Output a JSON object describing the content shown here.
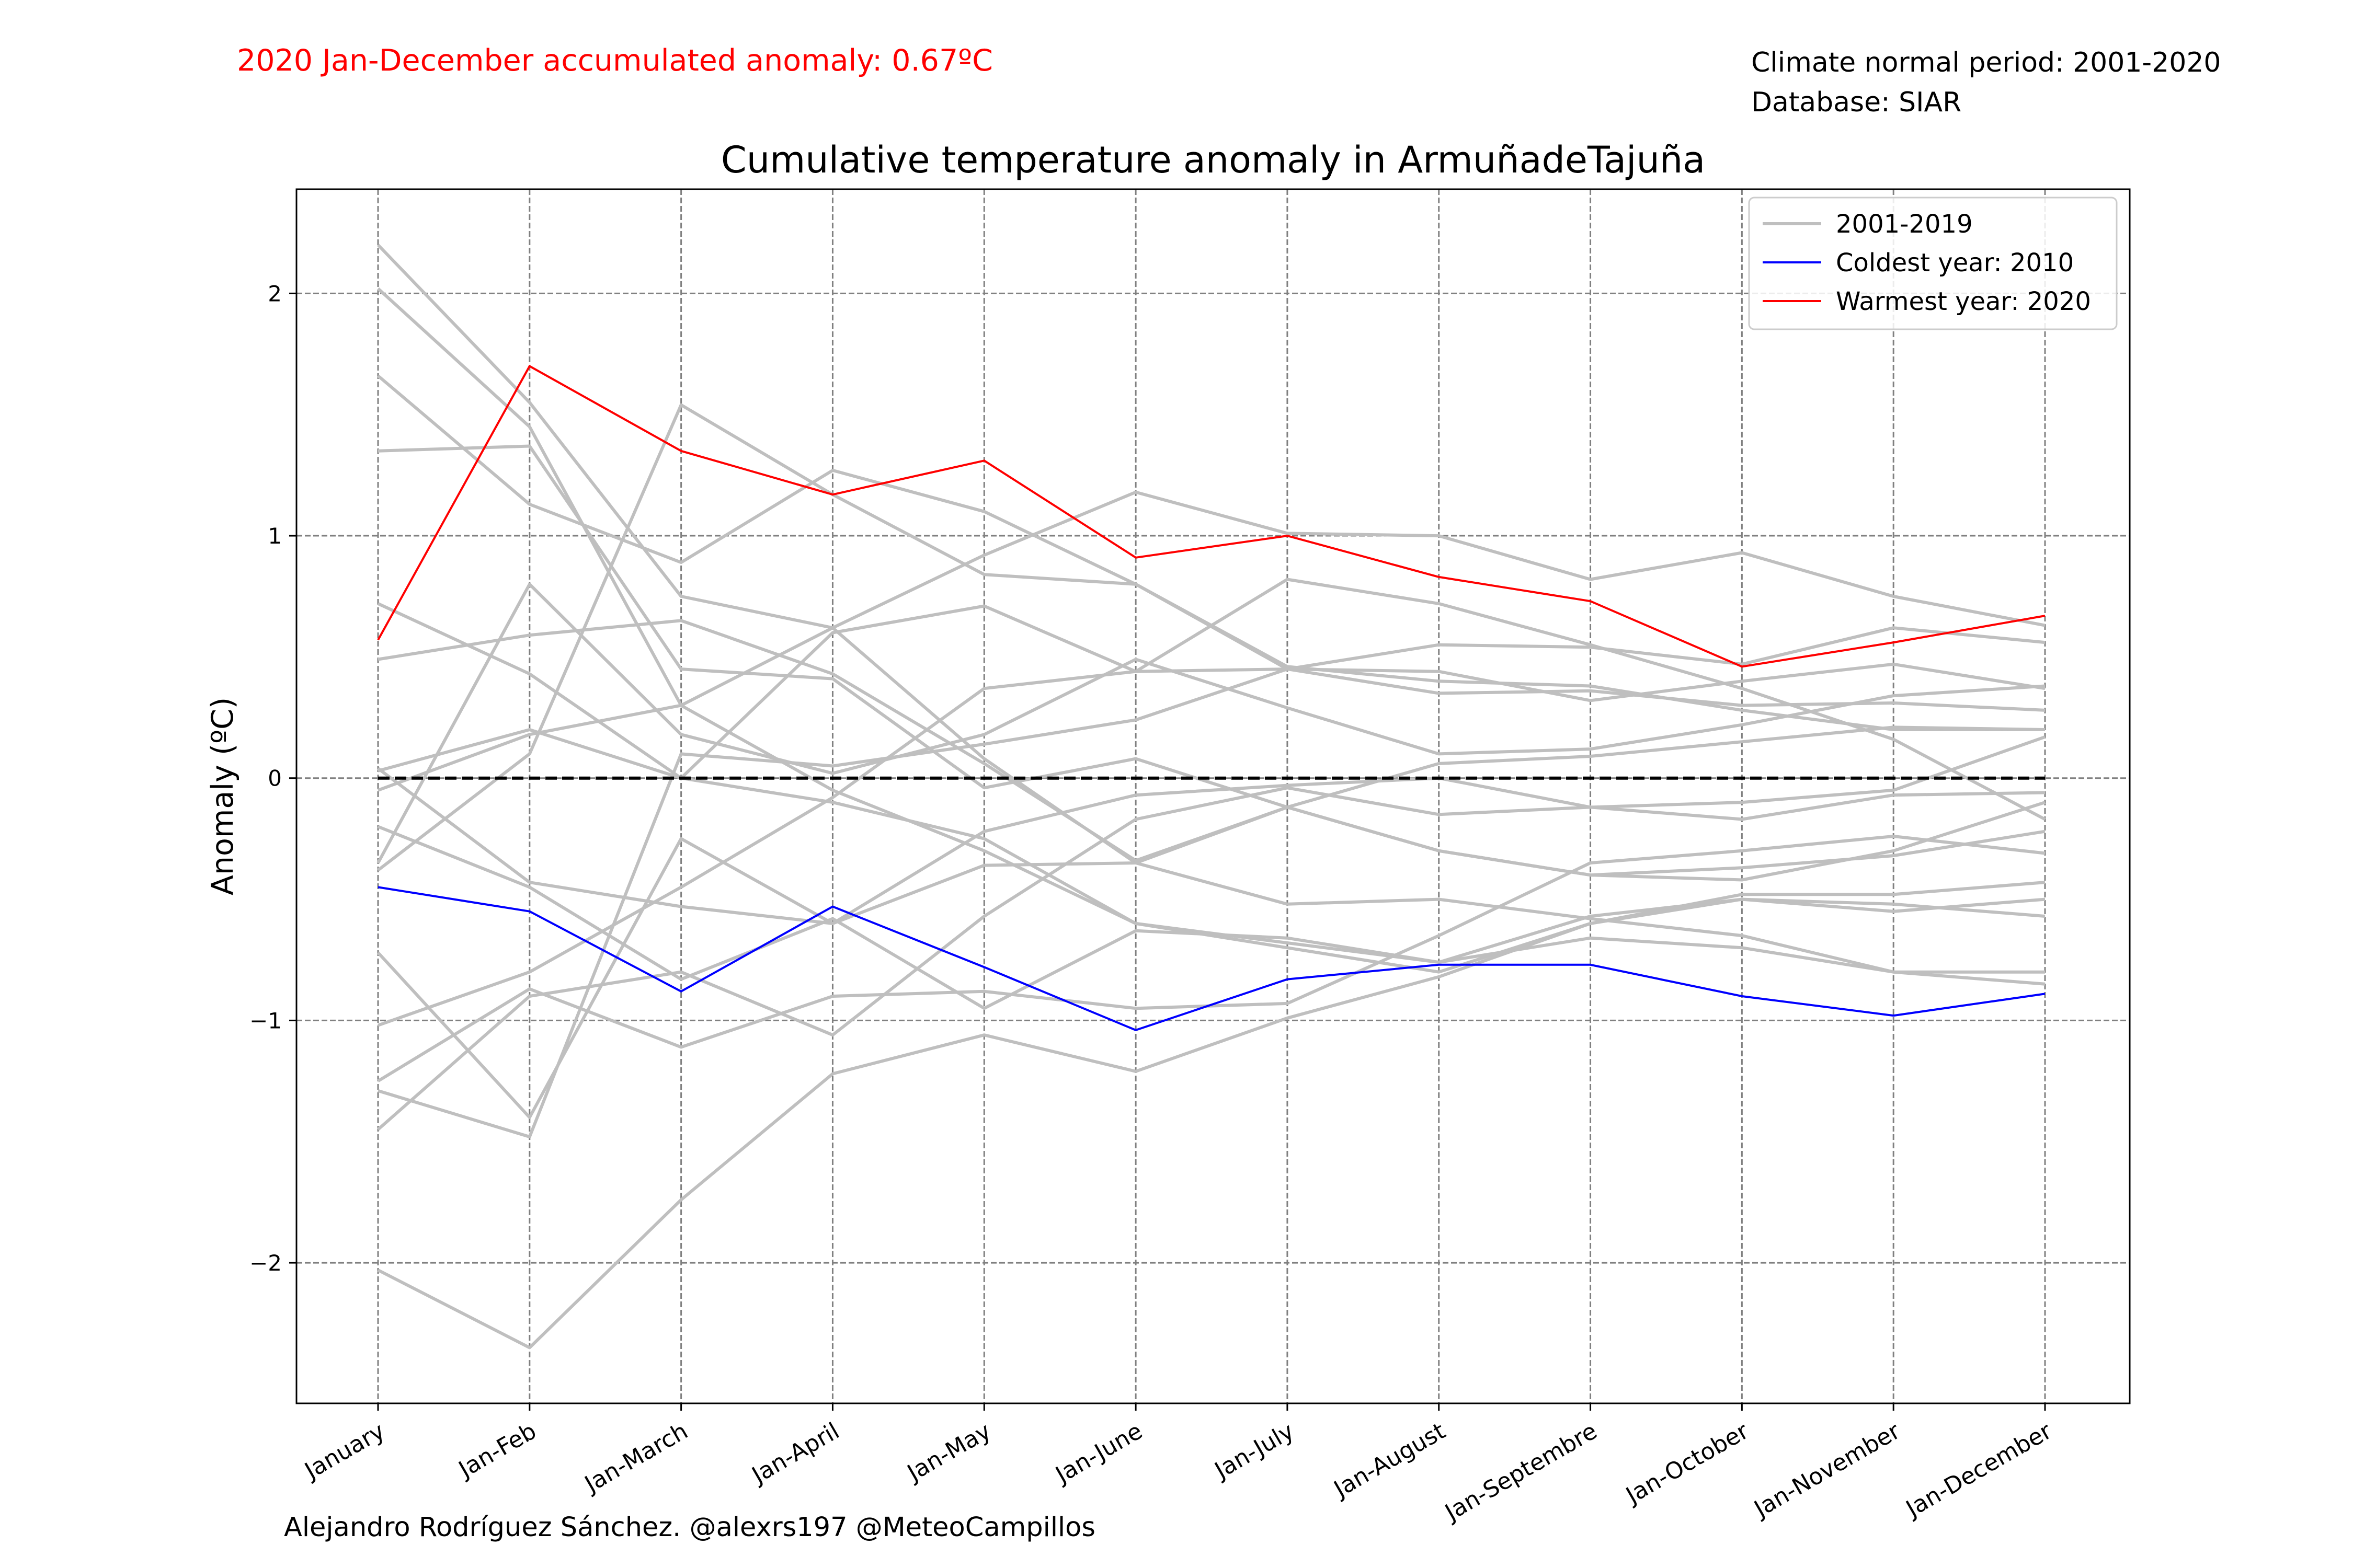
{
  "header": {
    "anomaly_note": "2020 Jan-December accumulated anomaly: 0.67ºC",
    "climate_normal": "Climate normal period: 2001-2020",
    "database": "Database: SIAR"
  },
  "footer": {
    "credit": "Alejandro Rodríguez Sánchez. @alexrs197 @MeteoCampillos"
  },
  "colors": {
    "warmest": "#ff0000",
    "coldest": "#0000ff",
    "background_years": "#bfbfbf",
    "zero_line": "#000000",
    "grid": "#808080",
    "anomaly_note": "#ff0000"
  },
  "chart_data": {
    "type": "line",
    "title": "Cumulative temperature anomaly in ArmuñadeTajuña",
    "xlabel": "",
    "ylabel": "Anomaly (ºC)",
    "ylim": [
      -2.58,
      2.43
    ],
    "yticks": [
      2,
      1,
      0,
      -1,
      -2
    ],
    "ytick_labels": [
      "2",
      "1",
      "0",
      "−1",
      "−2"
    ],
    "grid": true,
    "legend_position": "top-right",
    "categories": [
      "January",
      "Jan-Feb",
      "Jan-March",
      "Jan-April",
      "Jan-May",
      "Jan-June",
      "Jan-July",
      "Jan-August",
      "Jan-Septembre",
      "Jan-October",
      "Jan-November",
      "Jan-December"
    ],
    "reference_line": {
      "y": 0,
      "style": "dashed"
    },
    "legend": [
      "2001-2019",
      "Coldest year: 2010",
      "Warmest year: 2020"
    ],
    "series": [
      {
        "name": "Warmest year: 2020",
        "role": "warmest",
        "values": [
          0.57,
          1.7,
          1.35,
          1.17,
          1.31,
          0.91,
          1.0,
          0.83,
          0.73,
          0.46,
          0.56,
          0.67
        ]
      },
      {
        "name": "Coldest year: 2010",
        "role": "coldest",
        "values": [
          -0.45,
          -0.55,
          -0.88,
          -0.53,
          -0.78,
          -1.04,
          -0.83,
          -0.77,
          -0.77,
          -0.9,
          -0.98,
          -0.89
        ]
      },
      {
        "role": "background",
        "values": [
          2.2,
          1.55,
          0.75,
          0.62,
          0.08,
          -0.35,
          -0.52,
          -0.5,
          -0.58,
          -0.65,
          -0.8,
          -0.85
        ]
      },
      {
        "role": "background",
        "values": [
          2.02,
          1.45,
          0.3,
          -0.05,
          -0.3,
          -0.6,
          -0.68,
          -0.76,
          -0.57,
          -0.5,
          -0.52,
          -0.57
        ]
      },
      {
        "role": "background",
        "values": [
          1.66,
          1.13,
          0.89,
          1.27,
          1.1,
          0.8,
          0.46,
          0.4,
          0.38,
          0.28,
          0.2,
          0.2
        ]
      },
      {
        "role": "background",
        "values": [
          1.35,
          1.37,
          0.45,
          0.41,
          -0.04,
          0.08,
          -0.12,
          -0.3,
          -0.4,
          -0.42,
          -0.3,
          -0.1
        ]
      },
      {
        "role": "background",
        "values": [
          0.72,
          0.43,
          0.0,
          -0.1,
          -0.25,
          -0.6,
          -0.7,
          -0.8,
          -0.6,
          -0.5,
          -0.55,
          -0.5
        ]
      },
      {
        "role": "background",
        "values": [
          0.49,
          0.59,
          0.65,
          0.43,
          0.06,
          -0.34,
          -0.12,
          0.06,
          0.09,
          0.15,
          0.21,
          0.2
        ]
      },
      {
        "role": "background",
        "values": [
          0.04,
          -0.43,
          -0.53,
          -0.6,
          -0.22,
          -0.07,
          -0.03,
          0.0,
          -0.12,
          -0.17,
          -0.07,
          -0.06
        ]
      },
      {
        "role": "background",
        "values": [
          0.03,
          0.2,
          0.0,
          0.6,
          0.71,
          0.44,
          0.82,
          0.72,
          0.55,
          0.37,
          0.16,
          -0.17
        ]
      },
      {
        "role": "background",
        "values": [
          -0.05,
          0.18,
          0.3,
          0.62,
          0.92,
          1.18,
          1.01,
          1.0,
          0.82,
          0.93,
          0.75,
          0.63
        ]
      },
      {
        "role": "background",
        "values": [
          -0.2,
          -0.45,
          -0.83,
          -0.58,
          -0.95,
          -0.63,
          -0.66,
          -0.76,
          -0.66,
          -0.7,
          -0.8,
          -0.8
        ]
      },
      {
        "role": "background",
        "values": [
          -0.35,
          0.8,
          0.18,
          0.02,
          0.18,
          0.49,
          0.29,
          0.1,
          0.12,
          0.22,
          0.34,
          0.38
        ]
      },
      {
        "role": "background",
        "values": [
          -0.38,
          0.1,
          1.54,
          1.17,
          0.84,
          0.8,
          0.45,
          0.35,
          0.36,
          0.3,
          0.31,
          0.28
        ]
      },
      {
        "role": "background",
        "values": [
          -0.72,
          -1.4,
          -0.25,
          -0.6,
          -0.36,
          -0.35,
          -0.12,
          -0.3,
          -0.4,
          -0.37,
          -0.32,
          -0.22
        ]
      },
      {
        "role": "background",
        "values": [
          -1.02,
          -0.8,
          -0.45,
          -0.08,
          0.37,
          0.44,
          0.45,
          0.55,
          0.54,
          0.47,
          0.62,
          0.56
        ]
      },
      {
        "role": "background",
        "values": [
          -1.25,
          -0.87,
          -1.11,
          -0.9,
          -0.88,
          -0.95,
          -0.93,
          -0.65,
          -0.35,
          -0.3,
          -0.24,
          -0.31
        ]
      },
      {
        "role": "background",
        "values": [
          -1.29,
          -1.48,
          0.1,
          0.05,
          0.14,
          0.24,
          0.45,
          0.44,
          0.32,
          0.4,
          0.47,
          0.37
        ]
      },
      {
        "role": "background",
        "values": [
          -1.45,
          -0.9,
          -0.8,
          -1.06,
          -0.57,
          -0.17,
          -0.04,
          -0.15,
          -0.12,
          -0.1,
          -0.05,
          0.17
        ]
      },
      {
        "role": "background",
        "values": [
          -2.03,
          -2.35,
          -1.74,
          -1.22,
          -1.06,
          -1.21,
          -0.99,
          -0.82,
          -0.6,
          -0.48,
          -0.48,
          -0.43
        ]
      }
    ]
  }
}
